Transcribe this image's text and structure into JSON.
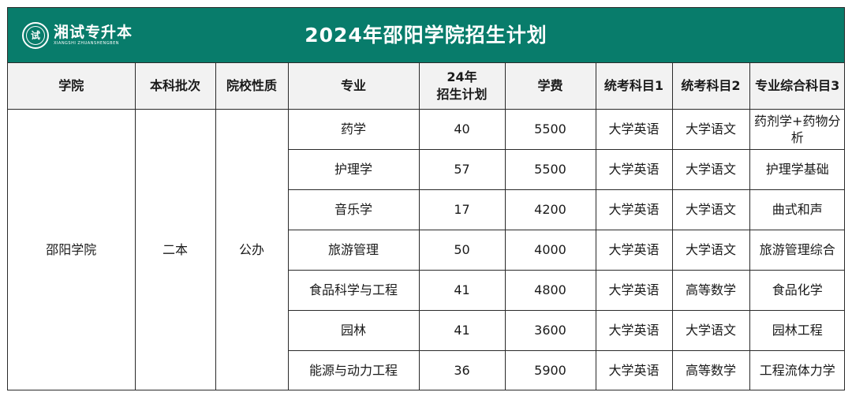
{
  "banner": {
    "brand_name": "湘试专升本",
    "brand_sub": "XIANGSHI ZHUANSHENGBEN",
    "seal_char": "试",
    "title": "2024年邵阳学院招生计划",
    "background_color": "#087c6b"
  },
  "table": {
    "headers": {
      "college": "学院",
      "batch": "本科批次",
      "nature": "院校性质",
      "major": "专业",
      "plan_line1": "24年",
      "plan_line2": "招生计划",
      "tuition": "学费",
      "subject1": "统考科目1",
      "subject2": "统考科目2",
      "subject3": "专业综合科目3"
    },
    "group": {
      "college": "邵阳学院",
      "batch": "二本",
      "nature": "公办"
    },
    "rows": [
      {
        "major": "药学",
        "plan": "40",
        "tuition": "5500",
        "subject1": "大学英语",
        "subject2": "大学语文",
        "subject3": "药剂学+药物分析"
      },
      {
        "major": "护理学",
        "plan": "57",
        "tuition": "5500",
        "subject1": "大学英语",
        "subject2": "大学语文",
        "subject3": "护理学基础"
      },
      {
        "major": "音乐学",
        "plan": "17",
        "tuition": "4200",
        "subject1": "大学英语",
        "subject2": "大学语文",
        "subject3": "曲式和声"
      },
      {
        "major": "旅游管理",
        "plan": "50",
        "tuition": "4000",
        "subject1": "大学英语",
        "subject2": "大学语文",
        "subject3": "旅游管理综合"
      },
      {
        "major": "食品科学与工程",
        "plan": "41",
        "tuition": "4800",
        "subject1": "大学英语",
        "subject2": "高等数学",
        "subject3": "食品化学"
      },
      {
        "major": "园林",
        "plan": "41",
        "tuition": "3600",
        "subject1": "大学英语",
        "subject2": "大学语文",
        "subject3": "园林工程"
      },
      {
        "major": "能源与动力工程",
        "plan": "36",
        "tuition": "5900",
        "subject1": "大学英语",
        "subject2": "高等数学",
        "subject3": "工程流体力学"
      }
    ]
  }
}
